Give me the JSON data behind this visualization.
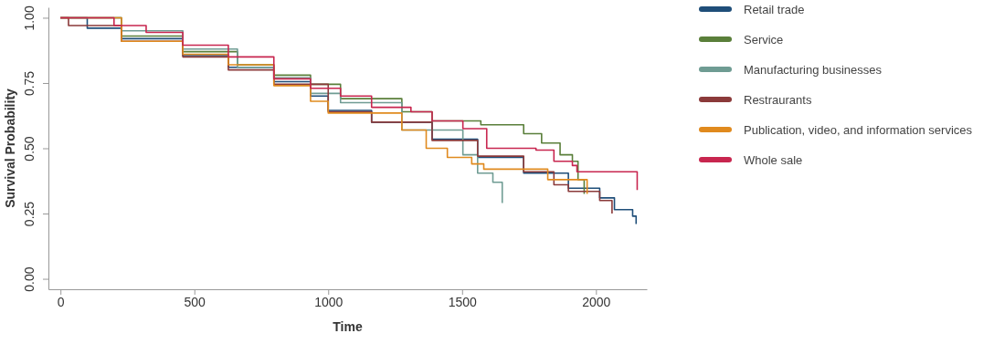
{
  "chart_data": {
    "type": "step",
    "xlabel": "Time",
    "ylabel": "Survival Probability",
    "xlim": [
      -45,
      2190
    ],
    "ylim": [
      -0.04,
      1.04
    ],
    "xticks": [
      0,
      500,
      1000,
      1500,
      2000
    ],
    "yticks": [
      {
        "value": 0,
        "label": "0.00"
      },
      {
        "value": 0.25,
        "label": "0.25"
      },
      {
        "value": 0.5,
        "label": "0.50"
      },
      {
        "value": 0.75,
        "label": "0.75"
      },
      {
        "value": 1,
        "label": "1.00"
      }
    ],
    "legend": "right",
    "grid": false,
    "series": [
      {
        "name": "Retail trade",
        "color": "#1f4e79",
        "x": [
          0,
          100,
          228,
          457,
          627,
          797,
          934,
          1000,
          1162,
          1388,
          1558,
          1730,
          1897,
          2014,
          2069,
          2137,
          2150
        ],
        "values": [
          1,
          0.96,
          0.92,
          0.855,
          0.81,
          0.755,
          0.7,
          0.645,
          0.6,
          0.535,
          0.465,
          0.405,
          0.347,
          0.31,
          0.265,
          0.24,
          0.21
        ]
      },
      {
        "name": "Service",
        "color": "#5a7f3a",
        "x": [
          0,
          228,
          457,
          661,
          797,
          934,
          1046,
          1275,
          1388,
          1570,
          1730,
          1797,
          1866,
          1912,
          1933,
          1956
        ],
        "values": [
          1,
          0.93,
          0.87,
          0.82,
          0.78,
          0.745,
          0.69,
          0.64,
          0.605,
          0.59,
          0.556,
          0.52,
          0.475,
          0.45,
          0.38,
          0.325
        ]
      },
      {
        "name": "Manufacturing businesses",
        "color": "#6f9c93",
        "x": [
          0,
          228,
          457,
          661,
          797,
          934,
          1046,
          1275,
          1503,
          1558,
          1615,
          1650
        ],
        "values": [
          1,
          0.95,
          0.88,
          0.81,
          0.77,
          0.71,
          0.675,
          0.57,
          0.475,
          0.405,
          0.37,
          0.29
        ]
      },
      {
        "name": "Restraurants",
        "color": "#8b3a3a",
        "x": [
          0,
          30,
          228,
          457,
          627,
          797,
          1000,
          1162,
          1388,
          1558,
          1730,
          1843,
          1897,
          2014,
          2060
        ],
        "values": [
          1,
          0.97,
          0.91,
          0.85,
          0.8,
          0.745,
          0.64,
          0.6,
          0.53,
          0.47,
          0.41,
          0.36,
          0.335,
          0.3,
          0.25
        ]
      },
      {
        "name": "Publication, video, and information services",
        "color": "#e08a1e",
        "x": [
          0,
          228,
          457,
          627,
          797,
          934,
          1000,
          1275,
          1366,
          1445,
          1536,
          1581,
          1820,
          1967
        ],
        "values": [
          1,
          0.91,
          0.86,
          0.82,
          0.74,
          0.68,
          0.635,
          0.57,
          0.5,
          0.465,
          0.44,
          0.42,
          0.38,
          0.325
        ]
      },
      {
        "name": "Whole sale",
        "color": "#c8264f",
        "x": [
          0,
          200,
          320,
          457,
          627,
          797,
          934,
          1046,
          1162,
          1309,
          1388,
          1503,
          1592,
          1776,
          1843,
          1912,
          1929,
          2154
        ],
        "values": [
          1,
          0.97,
          0.944,
          0.895,
          0.85,
          0.766,
          0.73,
          0.7,
          0.657,
          0.64,
          0.605,
          0.575,
          0.5,
          0.493,
          0.45,
          0.434,
          0.41,
          0.34
        ]
      }
    ]
  }
}
